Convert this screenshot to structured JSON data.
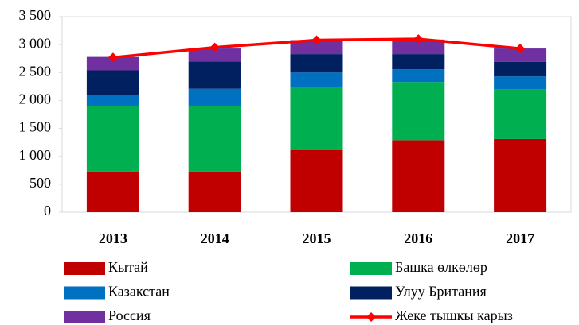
{
  "chart_data": {
    "type": "bar",
    "stacked": true,
    "categories": [
      "2013",
      "2014",
      "2015",
      "2016",
      "2017"
    ],
    "series": [
      {
        "name": "Кытай",
        "color": "#c00000",
        "values": [
          730,
          730,
          1110,
          1290,
          1310
        ]
      },
      {
        "name": "Башка өлкөлөр",
        "color": "#00b050",
        "values": [
          1170,
          1170,
          1130,
          1040,
          890
        ]
      },
      {
        "name": "Казакстан",
        "color": "#0070c0",
        "values": [
          200,
          310,
          260,
          230,
          230
        ]
      },
      {
        "name": "Улуу Британия",
        "color": "#002060",
        "values": [
          440,
          490,
          330,
          270,
          260
        ]
      },
      {
        "name": "Россия",
        "color": "#7030a0",
        "values": [
          240,
          230,
          250,
          260,
          240
        ]
      },
      {
        "name": "Жеке тышкы карыз",
        "color": "#ff0000",
        "type": "line",
        "values": [
          2770,
          2950,
          3080,
          3100,
          2930
        ]
      }
    ],
    "ylim": [
      0,
      3500
    ],
    "yticks": [
      0,
      500,
      {
        "value": 1000,
        "label": "1 000"
      },
      {
        "value": 1500,
        "label": "1 500"
      },
      {
        "value": 2000,
        "label": "2 000"
      },
      {
        "value": 2500,
        "label": "2 500"
      },
      {
        "value": 3000,
        "label": "3 000"
      },
      {
        "value": 3500,
        "label": "3 500"
      }
    ],
    "grid": false,
    "legend": "bottom"
  }
}
